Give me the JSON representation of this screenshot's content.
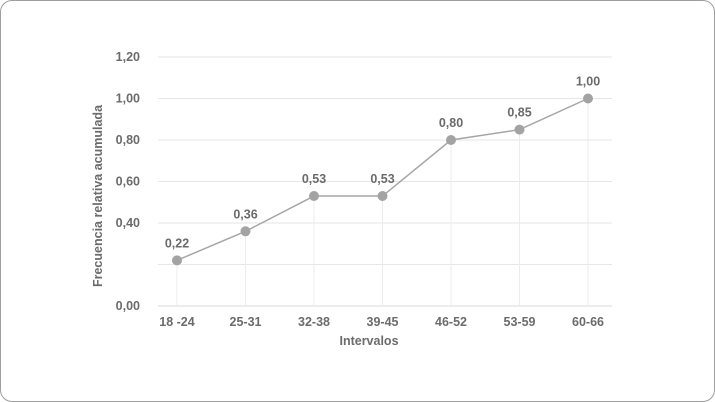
{
  "chart_data": {
    "type": "line",
    "categories": [
      "18 -24",
      "25-31",
      "32-38",
      "39-45",
      "46-52",
      "53-59",
      "60-66"
    ],
    "values": [
      0.22,
      0.36,
      0.53,
      0.53,
      0.8,
      0.85,
      1.0
    ],
    "data_labels": [
      "0,22",
      "0,36",
      "0,53",
      "0,53",
      "0,80",
      "0,85",
      "1,00"
    ],
    "xlabel": "Intervalos",
    "ylabel": "Frecuencia relativa acumulada",
    "ylim": [
      0,
      1.2
    ],
    "yticks": [
      {
        "value": 0.0,
        "label": "0,00"
      },
      {
        "value": 0.4,
        "label": "0,40"
      },
      {
        "value": 0.6,
        "label": "0,60"
      },
      {
        "value": 0.8,
        "label": "0,80"
      },
      {
        "value": 1.0,
        "label": "1,00"
      },
      {
        "value": 1.2,
        "label": "1,20"
      }
    ],
    "grid_values": [
      0.2,
      0.4,
      0.6,
      0.8,
      1.0,
      1.2
    ],
    "grid": true,
    "colors": {
      "line": "#a6a6a6",
      "marker": "#a3a3a3",
      "grid": "#e6e6e6",
      "text": "#6b6b6b"
    }
  }
}
